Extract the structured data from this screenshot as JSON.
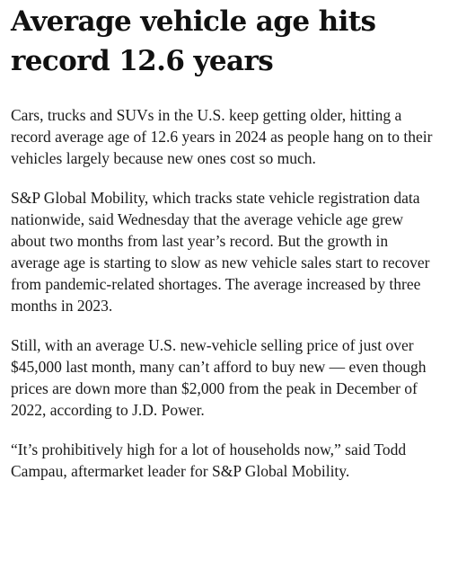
{
  "article": {
    "headline": "Average vehicle age hits record 12.6 years",
    "paragraphs": [
      "Cars, trucks and SUVs in the U.S. keep getting older, hitting a record average age of 12.6 years in 2024 as people hang on to their vehicles largely because new ones cost so much.",
      "S&P Global Mobility, which tracks state vehicle registration data nationwide, said Wednesday that the average vehicle age grew about two months from last year’s record. But the growth in average age is starting to slow as new vehicle sales start to recover from pandemic-related shortages. The average increased by three months in 2023.",
      "Still, with an average U.S. new-vehicle selling price of just over $45,000 last month, many can’t afford to buy new — even though prices are down more than $2,000 from the peak in December of 2022, according to J.D. Power.",
      "“It’s prohibitively high for a lot of households now,” said Todd Campau, aftermarket leader for S&P Global Mobility."
    ]
  }
}
